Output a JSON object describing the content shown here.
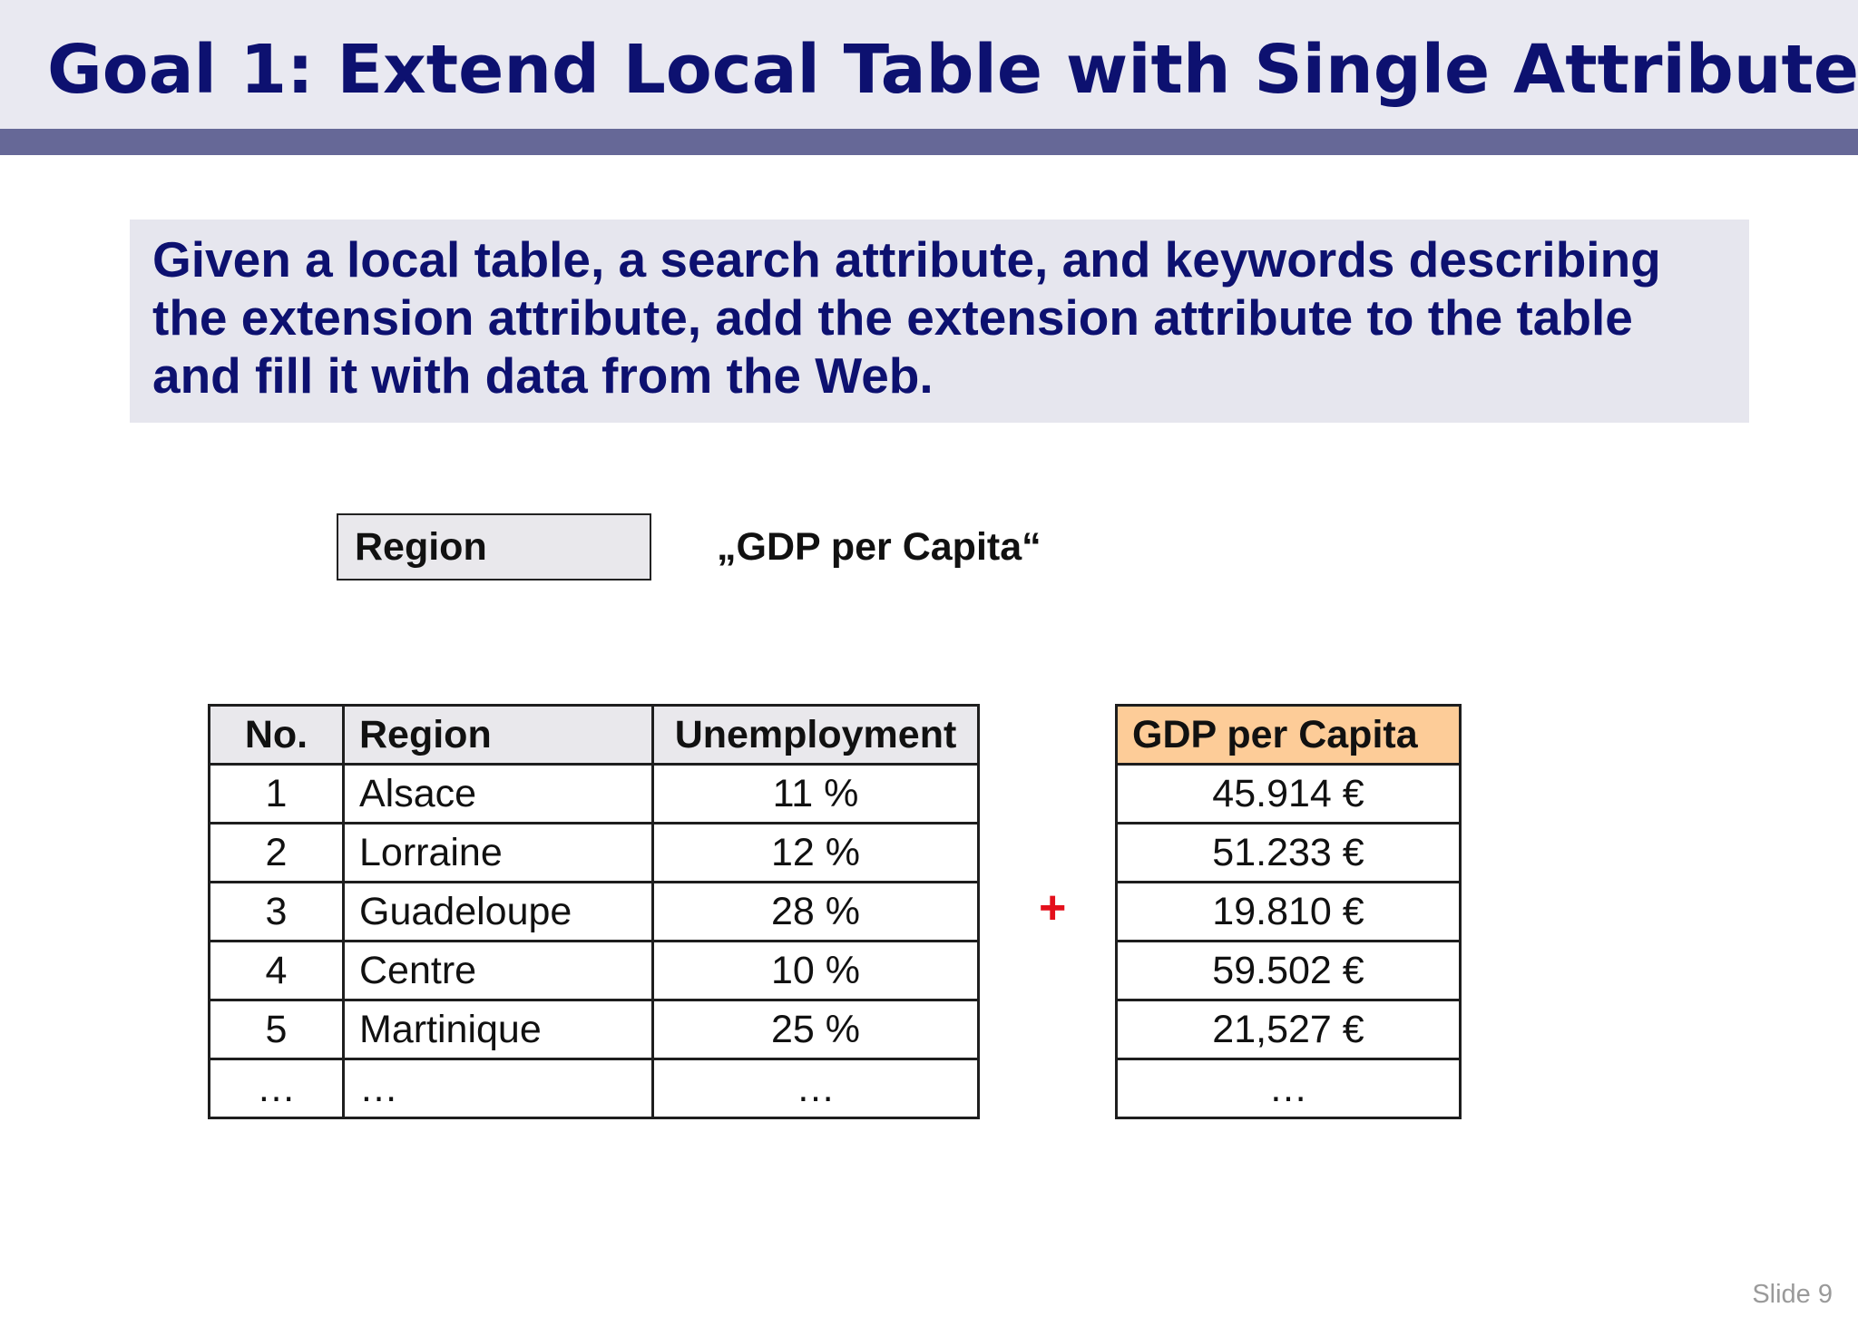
{
  "slide": {
    "title": "Goal 1: Extend Local Table with Single Attribute",
    "definition": "Given a local table, a search attribute, and keywords describing the extension attribute, add the extension attribute to the table and fill it with data from the Web.",
    "search_attribute": "Region",
    "keywords": "„GDP per Capita“",
    "plus": "+",
    "slide_number": "Slide 9"
  },
  "local_table": {
    "headers": [
      "No.",
      "Region",
      "Unemployment"
    ],
    "rows": [
      [
        "1",
        "Alsace",
        "11 %"
      ],
      [
        "2",
        "Lorraine",
        "12 %"
      ],
      [
        "3",
        "Guadeloupe",
        "28 %"
      ],
      [
        "4",
        "Centre",
        "10 %"
      ],
      [
        "5",
        "Martinique",
        "25 %"
      ],
      [
        "…",
        "…",
        "…"
      ]
    ]
  },
  "extension_table": {
    "header": "GDP per Capita",
    "rows": [
      "45.914 €",
      "51.233 €",
      "19.810 €",
      "59.502 €",
      "21,527 €",
      "…"
    ]
  },
  "colors": {
    "title_text": "#0d1170",
    "title_band": "#e9e9f1",
    "title_rule": "#666897",
    "extension_header": "#fdcc98",
    "plus": "#e4101c"
  }
}
